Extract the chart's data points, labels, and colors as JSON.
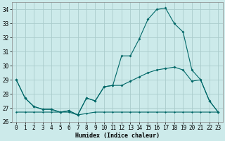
{
  "xlabel": "Humidex (Indice chaleur)",
  "background_color": "#cceaea",
  "grid_color": "#aacccc",
  "line_color": "#006868",
  "xlim_min": -0.5,
  "xlim_max": 23.5,
  "ylim_min": 26,
  "ylim_max": 34.5,
  "yticks": [
    26,
    27,
    28,
    29,
    30,
    31,
    32,
    33,
    34
  ],
  "xticks": [
    0,
    1,
    2,
    3,
    4,
    5,
    6,
    7,
    8,
    9,
    10,
    11,
    12,
    13,
    14,
    15,
    16,
    17,
    18,
    19,
    20,
    21,
    22,
    23
  ],
  "series1_x": [
    0,
    1,
    2,
    3,
    4,
    5,
    6,
    7,
    8,
    9,
    10,
    11,
    12,
    13,
    14,
    15,
    16,
    17,
    18,
    19,
    20,
    21,
    22,
    23
  ],
  "series1_y": [
    29.0,
    27.7,
    27.1,
    26.9,
    26.9,
    26.7,
    26.8,
    26.5,
    27.7,
    27.5,
    28.5,
    28.6,
    30.7,
    30.7,
    31.9,
    33.3,
    34.0,
    34.1,
    33.0,
    32.4,
    29.7,
    29.0,
    27.5,
    26.7
  ],
  "series2_x": [
    0,
    1,
    2,
    3,
    4,
    5,
    6,
    7,
    8,
    9,
    10,
    11,
    12,
    13,
    14,
    15,
    16,
    17,
    18,
    19,
    20,
    21,
    22,
    23
  ],
  "series2_y": [
    29.0,
    27.7,
    27.1,
    26.9,
    26.9,
    26.7,
    26.8,
    26.5,
    27.7,
    27.5,
    28.5,
    28.6,
    28.6,
    28.9,
    29.2,
    29.5,
    29.7,
    29.8,
    29.9,
    29.7,
    28.9,
    29.0,
    27.5,
    26.7
  ],
  "series3_x": [
    0,
    1,
    2,
    3,
    4,
    5,
    6,
    7,
    8,
    9,
    10,
    11,
    12,
    13,
    14,
    15,
    16,
    17,
    18,
    19,
    20,
    21,
    22,
    23
  ],
  "series3_y": [
    26.7,
    26.7,
    26.7,
    26.7,
    26.7,
    26.7,
    26.7,
    26.5,
    26.6,
    26.7,
    26.7,
    26.7,
    26.7,
    26.7,
    26.7,
    26.7,
    26.7,
    26.7,
    26.7,
    26.7,
    26.7,
    26.7,
    26.7,
    26.7
  ],
  "xlabel_fontsize": 6,
  "tick_fontsize": 5.5
}
